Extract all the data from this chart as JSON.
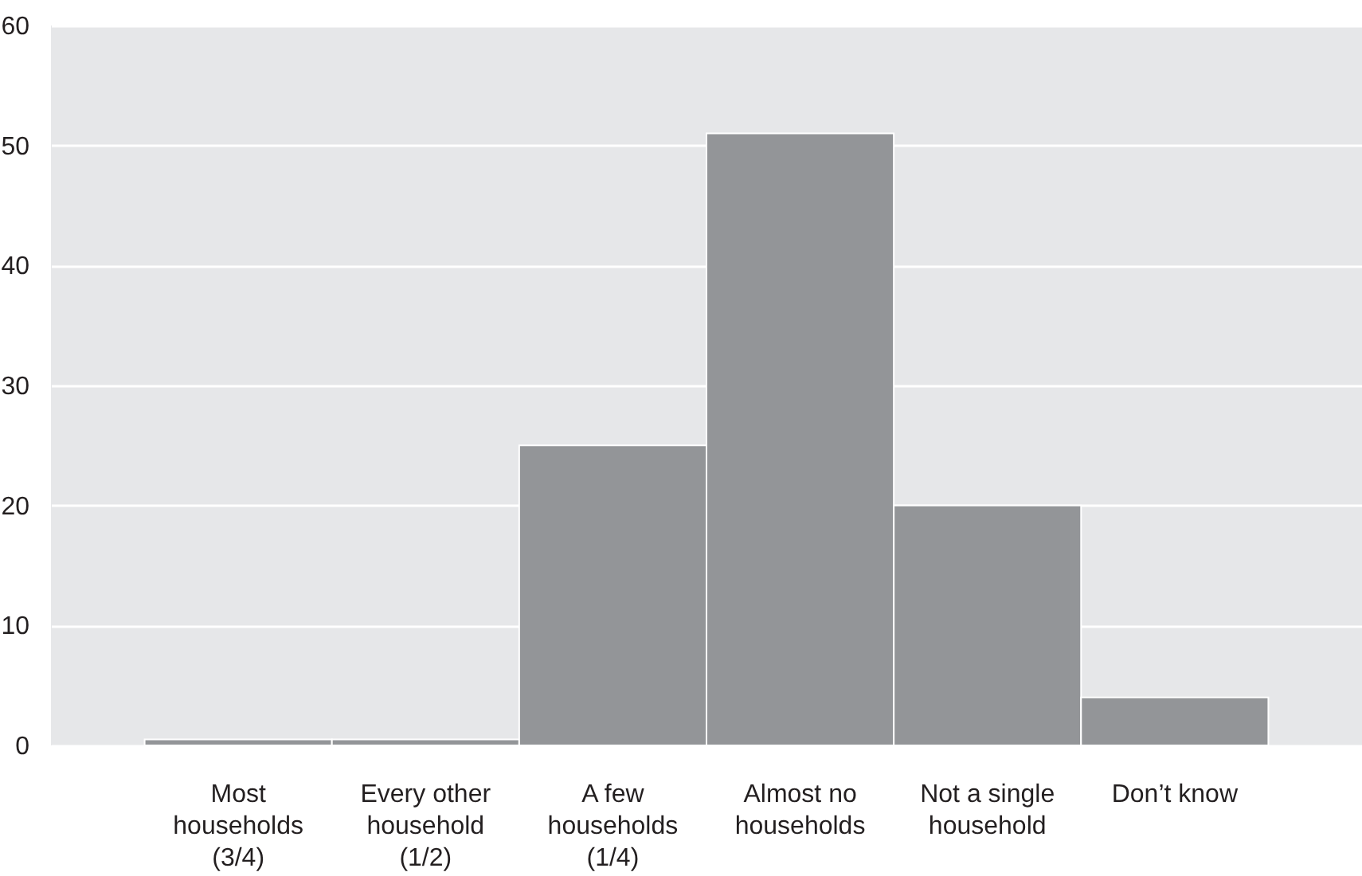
{
  "chart_data": {
    "type": "bar",
    "categories": [
      "Most households (3/4)",
      "Every other household (1/2)",
      "A few households (1/4)",
      "Almost no households",
      "Not a single household",
      "Don’t know"
    ],
    "values": [
      0.5,
      0.5,
      25,
      51,
      20,
      4
    ],
    "color": "#939598",
    "ylim": [
      0,
      60
    ],
    "yticks": [
      0,
      10,
      20,
      30,
      40,
      50,
      60
    ],
    "grid": "y"
  }
}
